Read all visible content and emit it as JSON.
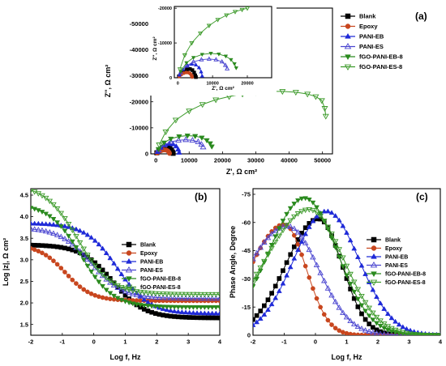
{
  "colors": {
    "Blank": "#000000",
    "Epoxy": "#c8461e",
    "PANI-EB": "#1f2ad8",
    "PANI-ES": "#4a45d0",
    "fGO-PANI-EB-8": "#2a8a1e",
    "fGO-PANI-ES-8": "#3c9a2a"
  },
  "chart_data": [
    {
      "panel_label": "(a)",
      "type": "scatter",
      "title": "",
      "xlabel": "Z', Ω cm²",
      "ylabel": "Z'', Ω cm²",
      "xlim": [
        -1500,
        53000
      ],
      "ylim": [
        0,
        -56000
      ],
      "xticks": [
        "0",
        "10000",
        "20000",
        "30000",
        "40000",
        "50000"
      ],
      "yticks": [
        "0",
        "-10000",
        "-20000",
        "-30000",
        "-40000",
        "-50000"
      ],
      "legend": [
        "Blank",
        "Epoxy",
        "PANI-EB",
        "PANI-ES",
        "fGO-PANI-EB-8",
        "fGO-PANI-ES-8"
      ],
      "series": [
        {
          "name": "Blank",
          "marker": "square",
          "x": [
            300,
            900,
            1700,
            2600,
            3500,
            4200,
            4700,
            5000,
            5200
          ],
          "y": [
            -400,
            -1200,
            -1900,
            -2400,
            -2500,
            -2200,
            -1500,
            -700,
            -200
          ]
        },
        {
          "name": "Epoxy",
          "marker": "circle",
          "x": [
            400,
            1000,
            1700,
            2400,
            3100,
            3600,
            3950,
            4100
          ],
          "y": [
            -350,
            -900,
            -1300,
            -1500,
            -1450,
            -1150,
            -650,
            -200
          ]
        },
        {
          "name": "PANI-EB",
          "marker": "triangle",
          "x": [
            500,
            1500,
            2800,
            4000,
            5200,
            6100,
            6700,
            7000
          ],
          "y": [
            -800,
            -2400,
            -3500,
            -3900,
            -3700,
            -2900,
            -1700,
            -500
          ]
        },
        {
          "name": "PANI-ES",
          "marker": "triangle-open",
          "x": [
            800,
            2500,
            4500,
            6800,
            9000,
            11000,
            12700,
            13700,
            14200
          ],
          "y": [
            -1500,
            -3400,
            -4600,
            -5200,
            -5400,
            -5200,
            -4600,
            -3600,
            -2600
          ]
        },
        {
          "name": "fGO-PANI-EB-8",
          "marker": "triangle-down",
          "x": [
            800,
            2500,
            4500,
            7000,
            9500,
            11800,
            13800,
            15300,
            16300,
            16800
          ],
          "y": [
            -1800,
            -4300,
            -5800,
            -6700,
            -7000,
            -6800,
            -6200,
            -5200,
            -4000,
            -2800
          ]
        },
        {
          "name": "fGO-PANI-ES-8",
          "marker": "triangle-down-open",
          "x": [
            1000,
            3000,
            6000,
            10000,
            14000,
            18000,
            22000,
            26000,
            30000,
            34000,
            38000,
            42000,
            45500,
            48000,
            49800,
            50700,
            51000
          ],
          "y": [
            -3500,
            -8500,
            -13000,
            -16500,
            -19000,
            -20800,
            -22000,
            -23000,
            -23600,
            -24000,
            -24000,
            -23700,
            -23000,
            -22000,
            -20500,
            -17500,
            -14500
          ]
        }
      ],
      "inset": {
        "xlabel": "Z', Ω cm²",
        "ylabel": "Z'', Ω cm²",
        "xlim": [
          -1000,
          27000
        ],
        "ylim": [
          0,
          -20500
        ],
        "xticks": [
          "0",
          "10000",
          "20000"
        ],
        "yticks": [
          "0",
          "-10000",
          "-20000"
        ],
        "series": [
          {
            "name": "Blank",
            "x": [
              300,
              900,
              1700,
              2600,
              3500,
              4200,
              4700,
              5000,
              5200
            ],
            "y": [
              -400,
              -1200,
              -1900,
              -2400,
              -2500,
              -2200,
              -1500,
              -700,
              -200
            ]
          },
          {
            "name": "Epoxy",
            "x": [
              400,
              1000,
              1700,
              2400,
              3100,
              3600,
              3950,
              4100
            ],
            "y": [
              -350,
              -900,
              -1300,
              -1500,
              -1450,
              -1150,
              -650,
              -200
            ]
          },
          {
            "name": "PANI-EB",
            "x": [
              500,
              1500,
              2800,
              4000,
              5200,
              6100,
              6700,
              7000
            ],
            "y": [
              -800,
              -2400,
              -3500,
              -3900,
              -3700,
              -2900,
              -1700,
              -500
            ]
          },
          {
            "name": "PANI-ES",
            "x": [
              800,
              2500,
              4500,
              6800,
              9000,
              11000,
              12700,
              13700,
              14200
            ],
            "y": [
              -1500,
              -3400,
              -4600,
              -5200,
              -5400,
              -5200,
              -4600,
              -3600,
              -2600
            ]
          },
          {
            "name": "fGO-PANI-EB-8",
            "x": [
              800,
              2500,
              4500,
              7000,
              9500,
              11800,
              13800,
              15300,
              16300,
              16800
            ],
            "y": [
              -1800,
              -4300,
              -5800,
              -6700,
              -7000,
              -6800,
              -6200,
              -5200,
              -4000,
              -2800
            ]
          },
          {
            "name": "fGO-PANI-ES-8",
            "x": [
              600,
              2000,
              4000,
              6500,
              9000,
              11500,
              14000,
              16500,
              18500,
              20000
            ],
            "y": [
              -2500,
              -6500,
              -10000,
              -12800,
              -15000,
              -16700,
              -18000,
              -19000,
              -19600,
              -20000
            ]
          }
        ]
      }
    },
    {
      "panel_label": "(b)",
      "type": "scatter",
      "title": "",
      "xlabel": "Log f, Hz",
      "ylabel": "Log |z|, Ω cm²",
      "xlim": [
        -2,
        4
      ],
      "ylim": [
        1.25,
        4.65
      ],
      "xticks": [
        "-2",
        "-1",
        "0",
        "1",
        "2",
        "3",
        "4"
      ],
      "yticks": [
        "1.5",
        "2.0",
        "2.5",
        "3.0",
        "3.5",
        "4.0",
        "4.5"
      ],
      "legend": [
        "Blank",
        "Epoxy",
        "PANI-EB",
        "PANI-ES",
        "fGO-PANI-EB-8",
        "fGO-PANI-ES-8"
      ],
      "series": [
        {
          "name": "Blank",
          "marker": "square",
          "hi": 3.35,
          "lo": 1.65,
          "center": 0.6,
          "width": 0.5
        },
        {
          "name": "Epoxy",
          "marker": "circle",
          "hi": 3.35,
          "lo": 2.05,
          "center": -0.9,
          "width": 0.42
        },
        {
          "name": "PANI-EB",
          "marker": "triangle",
          "hi": 3.85,
          "lo": 1.75,
          "center": 0.75,
          "width": 0.5
        },
        {
          "name": "PANI-ES",
          "marker": "triangle-open",
          "hi": 3.75,
          "lo": 2.1,
          "center": -0.1,
          "width": 0.5
        },
        {
          "name": "fGO-PANI-EB-8",
          "marker": "triangle-down",
          "hi": 4.3,
          "lo": 1.9,
          "center": -0.4,
          "width": 0.5
        },
        {
          "name": "fGO-PANI-ES-8",
          "marker": "triangle-down-open",
          "hi": 4.75,
          "lo": 2.2,
          "center": -0.5,
          "width": 0.52
        }
      ]
    },
    {
      "panel_label": "(c)",
      "type": "scatter",
      "title": "",
      "xlabel": "Log f, Hz",
      "ylabel": "Phase Angle, Degree",
      "xlim": [
        -2,
        4
      ],
      "ylim": [
        0,
        -78
      ],
      "xticks": [
        "-2",
        "-1",
        "0",
        "1",
        "2",
        "3",
        "4"
      ],
      "yticks": [
        "0",
        "-15",
        "-30",
        "-45",
        "-60",
        "-75"
      ],
      "legend": [
        "Blank",
        "Epoxy",
        "PANI-EB",
        "PANI-ES",
        "fGO-PANI-EB-8",
        "fGO-PANI-ES-8"
      ],
      "series": [
        {
          "name": "Blank",
          "marker": "square",
          "peak": -62,
          "peak_x": 0.1,
          "left_sigma": 1.05,
          "right_sigma": 0.75
        },
        {
          "name": "Epoxy",
          "marker": "circle",
          "peak": -59,
          "peak_x": -1.0,
          "left_sigma": 1.1,
          "right_sigma": 0.7
        },
        {
          "name": "PANI-EB",
          "marker": "triangle",
          "peak": -66,
          "peak_x": 0.35,
          "left_sigma": 1.05,
          "right_sigma": 1.05
        },
        {
          "name": "PANI-ES",
          "marker": "triangle-open",
          "peak": -58,
          "peak_x": -0.9,
          "left_sigma": 1.3,
          "right_sigma": 1.0
        },
        {
          "name": "fGO-PANI-EB-8",
          "marker": "triangle-down",
          "peak": -73,
          "peak_x": -0.35,
          "left_sigma": 1.15,
          "right_sigma": 1.05
        },
        {
          "name": "fGO-PANI-ES-8",
          "marker": "triangle-down-open",
          "peak": -67,
          "peak_x": -0.2,
          "left_sigma": 1.4,
          "right_sigma": 1.1
        }
      ]
    }
  ]
}
